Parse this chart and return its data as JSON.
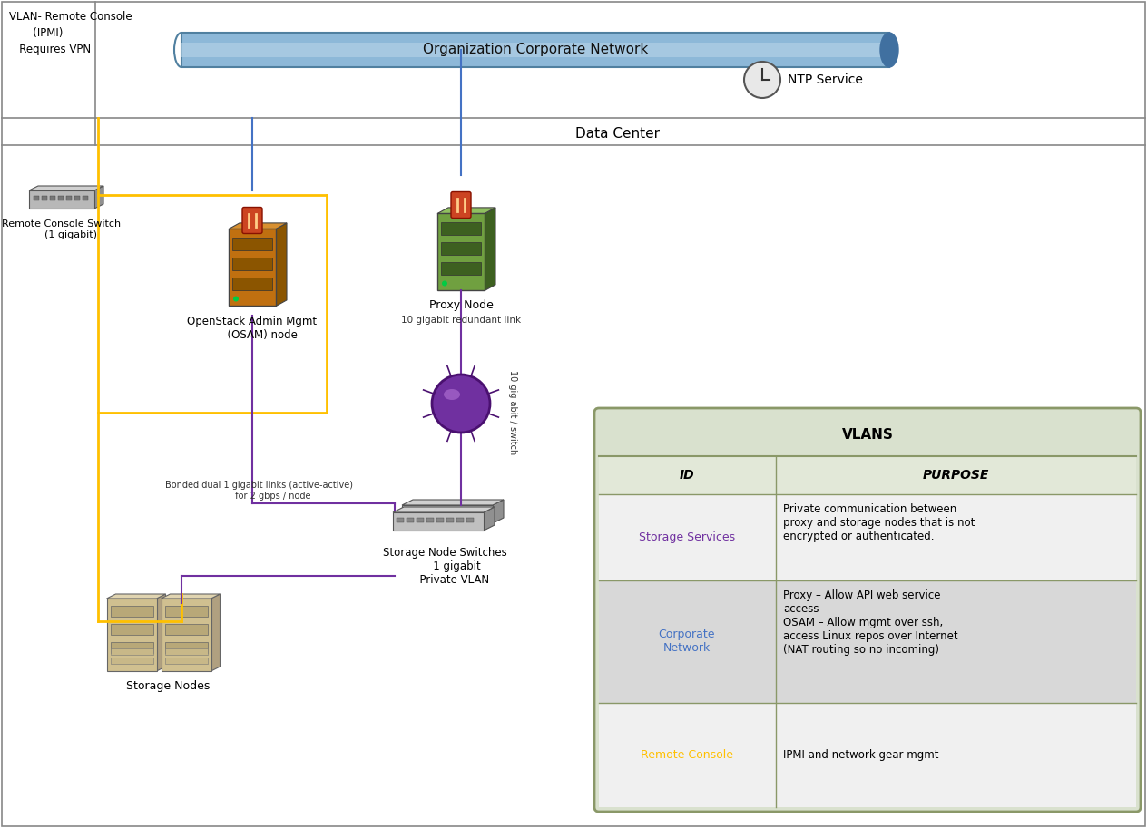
{
  "fig_width": 12.64,
  "fig_height": 9.13,
  "bg_color": "#ffffff",
  "border_color": "#888888",
  "corp_network_text": "Organization Corporate Network",
  "ntp_text": "NTP Service",
  "vlan_label_line1": "VLAN- Remote Console",
  "vlan_label_line2": "       (IPMI)",
  "vlan_label_line3": "   Requires VPN",
  "vlan_label_color": "#000000",
  "datacenter_text": "Data Center",
  "remote_console_text": "Remote Console Switch\n      (1 gigabit)",
  "osam_text": "OpenStack Admin Mgmt\n      (OSAM) node",
  "proxy_text": "Proxy Node",
  "storage_nodes_text": "Storage Nodes",
  "storage_switches_text": "Storage Node Switches\n       1 gigabit\n      Private VLAN",
  "yellow_color": "#ffc000",
  "purple_color": "#7030a0",
  "blue_color": "#4472c4",
  "bonded_link_text": "Bonded dual 1 gigabit links (active-active)\n          for 2 gbps / node",
  "gigabit_redundant_text": "10 gigabit redundant link",
  "10gig_switch_label": "10 gig abit / switch",
  "table_title": "VLANS",
  "table_header_id": "ID",
  "table_header_purpose": "PURPOSE",
  "table_bg_color": "#d9e1ce",
  "table_header_bg": "#e2e8d8",
  "table_row1_bg": "#f0f0f0",
  "table_row2_bg": "#d8d8d8",
  "table_row3_bg": "#f0f0f0",
  "table_border_color": "#8a9868",
  "row1_id": "Storage Services",
  "row1_id_color": "#7030a0",
  "row1_purpose": "Private communication between\nproxy and storage nodes that is not\nencrypted or authenticated.",
  "row2_id": "Corporate\nNetwork",
  "row2_id_color": "#4472c4",
  "row2_purpose": "Proxy – Allow API web service\naccess\nOSAM – Allow mgmt over ssh,\naccess Linux repos over Internet\n(NAT routing so no incoming)",
  "row3_id": "Remote Console",
  "row3_id_color": "#ffc000",
  "row3_purpose": "IPMI and network gear mgmt"
}
